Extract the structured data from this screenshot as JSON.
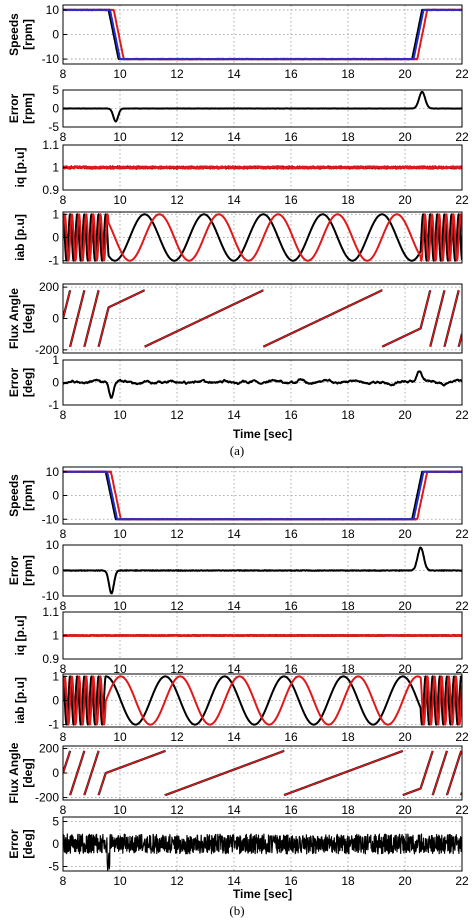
{
  "figure": {
    "captions": [
      "(a)",
      "(b)"
    ],
    "xlabel": "Time [sec]",
    "colors": {
      "black": "#000000",
      "red": "#e0191b",
      "blue": "#1f2fd6",
      "grid": "#9a9a9a"
    }
  },
  "chart_data": [
    {
      "part": "a",
      "type": "line",
      "ylabel": [
        "Speeds",
        "[rpm]"
      ],
      "xlim": [
        8,
        22
      ],
      "ylim": [
        -12,
        12
      ],
      "yticks": [
        10,
        0,
        -10
      ],
      "xticks": [
        8,
        10,
        12,
        14,
        16,
        18,
        20,
        22
      ],
      "show_xticks": true,
      "kind": "speed",
      "params": {
        "t1": 9.6,
        "t2": 20.25
      }
    },
    {
      "part": "a",
      "type": "line",
      "ylabel": [
        "Error",
        "[rpm]"
      ],
      "xlim": [
        8,
        22
      ],
      "ylim": [
        -5,
        5
      ],
      "yticks": [
        5,
        0,
        -5
      ],
      "xticks": [
        8,
        10,
        12,
        14,
        16,
        18,
        20,
        22
      ],
      "show_xticks": true,
      "kind": "err_rpm",
      "params": {
        "t1": 9.85,
        "a1": -3.5,
        "t2": 20.6,
        "a2": 4.5,
        "noise": 0.05
      }
    },
    {
      "part": "a",
      "type": "line",
      "ylabel": [
        "iq [p.u]"
      ],
      "xlim": [
        8,
        22
      ],
      "ylim": [
        0.9,
        1.1
      ],
      "yticks": [
        1.1,
        1,
        0.9
      ],
      "xticks": [
        8,
        10,
        12,
        14,
        16,
        18,
        20,
        22
      ],
      "show_xticks": true,
      "kind": "iq",
      "params": {
        "noise": 0.01
      }
    },
    {
      "part": "a",
      "type": "line",
      "ylabel": [
        "iab [p.u]"
      ],
      "xlim": [
        8,
        22
      ],
      "ylim": [
        -1.1,
        1.1
      ],
      "yticks": [
        1,
        0,
        -1
      ],
      "xticks": [
        8,
        10,
        12,
        14,
        16,
        18,
        20,
        22
      ],
      "show_xticks": false,
      "kind": "iab",
      "params": {
        "t1": 9.6,
        "t2": 20.25
      }
    },
    {
      "part": "a",
      "type": "line",
      "ylabel": [
        "Flux Angle",
        "[deg]"
      ],
      "xlim": [
        8,
        22
      ],
      "ylim": [
        -220,
        220
      ],
      "yticks": [
        200,
        0,
        -200
      ],
      "xticks": [
        8,
        10,
        12,
        14,
        16,
        18,
        20,
        22
      ],
      "show_xticks": false,
      "kind": "angle",
      "params": {
        "t1": 9.6,
        "t2": 20.25
      }
    },
    {
      "part": "a",
      "type": "line",
      "ylabel": [
        "Error",
        "[deg]"
      ],
      "xlim": [
        8,
        22
      ],
      "ylim": [
        -1,
        1
      ],
      "yticks": [
        1,
        0,
        -1
      ],
      "xticks": [
        8,
        10,
        12,
        14,
        16,
        18,
        20,
        22
      ],
      "show_xticks": true,
      "kind": "err_deg_smooth",
      "params": {
        "t1": 9.7,
        "t2": 20.5
      }
    },
    {
      "part": "b",
      "type": "line",
      "ylabel": [
        "Speeds",
        "[rpm]"
      ],
      "xlim": [
        8,
        22
      ],
      "ylim": [
        -12,
        12
      ],
      "yticks": [
        10,
        0,
        -10
      ],
      "xticks": [
        8,
        10,
        12,
        14,
        16,
        18,
        20,
        22
      ],
      "show_xticks": true,
      "kind": "speed",
      "params": {
        "t1": 9.5,
        "t2": 20.25
      }
    },
    {
      "part": "b",
      "type": "line",
      "ylabel": [
        "Error",
        "[rpm]"
      ],
      "xlim": [
        8,
        22
      ],
      "ylim": [
        -10,
        10
      ],
      "yticks": [
        10,
        0,
        -10
      ],
      "xticks": [
        8,
        10,
        12,
        14,
        16,
        18,
        20,
        22
      ],
      "show_xticks": true,
      "kind": "err_rpm",
      "params": {
        "t1": 9.7,
        "a1": -9,
        "t2": 20.55,
        "a2": 9,
        "noise": 0.25
      }
    },
    {
      "part": "b",
      "type": "line",
      "ylabel": [
        "iq [p.u]"
      ],
      "xlim": [
        8,
        22
      ],
      "ylim": [
        0.9,
        1.1
      ],
      "yticks": [
        1.1,
        1,
        0.9
      ],
      "xticks": [
        8,
        10,
        12,
        14,
        16,
        18,
        20,
        22
      ],
      "show_xticks": true,
      "kind": "iq",
      "params": {
        "noise": 0.004
      }
    },
    {
      "part": "b",
      "type": "line",
      "ylabel": [
        "iab [p.u]"
      ],
      "xlim": [
        8,
        22
      ],
      "ylim": [
        -1.1,
        1.1
      ],
      "yticks": [
        1,
        0,
        -1
      ],
      "xticks": [
        8,
        10,
        12,
        14,
        16,
        18,
        20,
        22
      ],
      "show_xticks": true,
      "kind": "iab",
      "params": {
        "t1": 9.5,
        "t2": 20.25
      }
    },
    {
      "part": "b",
      "type": "line",
      "ylabel": [
        "Flux Angle",
        "[deg]"
      ],
      "xlim": [
        8,
        22
      ],
      "ylim": [
        -220,
        220
      ],
      "yticks": [
        200,
        0,
        -200
      ],
      "xticks": [
        8,
        10,
        12,
        14,
        16,
        18,
        20,
        22
      ],
      "show_xticks": true,
      "kind": "angle",
      "params": {
        "t1": 9.5,
        "t2": 20.25
      }
    },
    {
      "part": "b",
      "type": "line",
      "ylabel": [
        "Error",
        "[deg]"
      ],
      "xlim": [
        8,
        22
      ],
      "ylim": [
        -6,
        6
      ],
      "yticks": [
        5,
        0,
        -5
      ],
      "xticks": [
        8,
        10,
        12,
        14,
        16,
        18,
        20,
        22
      ],
      "show_xticks": true,
      "kind": "err_deg_noisy",
      "params": {
        "noise": 2.2
      }
    }
  ]
}
